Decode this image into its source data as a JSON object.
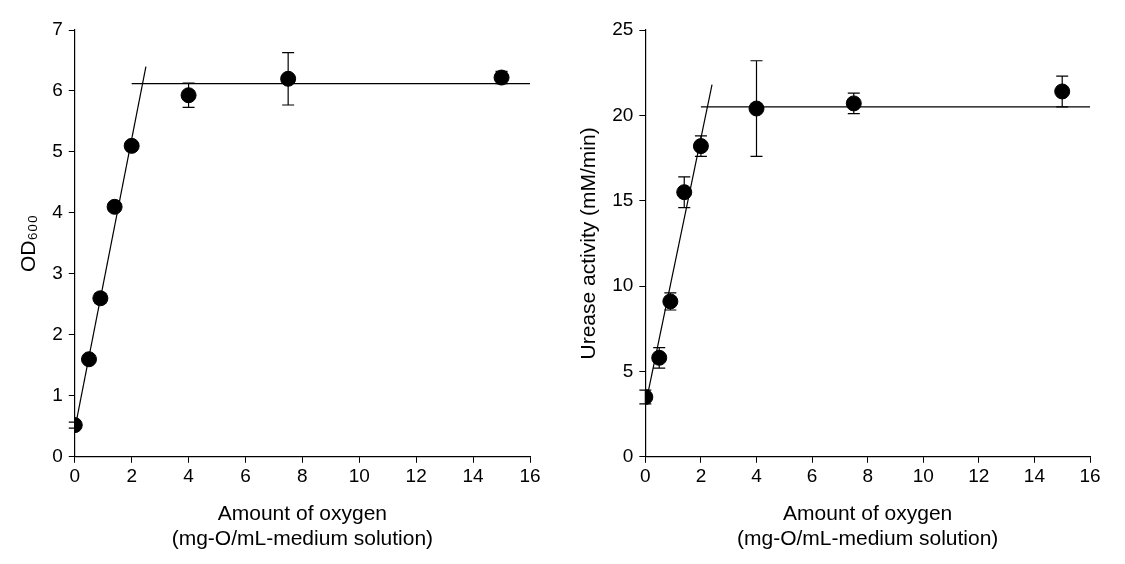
{
  "chart_data": [
    {
      "type": "scatter",
      "x_label": [
        "Amount of oxygen",
        "(mg-O/mL-medium solution)"
      ],
      "y_label": "OD₆₀₀",
      "xlim": [
        0,
        16
      ],
      "xticks": [
        0,
        2,
        4,
        6,
        8,
        10,
        12,
        14,
        16
      ],
      "ylim": [
        0,
        7
      ],
      "yticks": [
        0,
        1,
        2,
        3,
        4,
        5,
        6,
        7
      ],
      "grid": false,
      "series": [
        {
          "type": "scatter",
          "marker": "circle",
          "color": "#000000",
          "x": [
            0,
            0.5,
            0.9,
            1.4,
            2.0,
            4.0,
            7.5,
            15.0
          ],
          "values": [
            0.52,
            1.6,
            2.6,
            4.1,
            5.1,
            5.93,
            6.2,
            6.22
          ],
          "errors": [
            0.05,
            0.05,
            0.08,
            0.05,
            0.05,
            0.2,
            0.43,
            0.1
          ]
        },
        {
          "type": "line",
          "line_style": "solid",
          "color": "#000000",
          "x": [
            0,
            2.5
          ],
          "values": [
            0.45,
            6.4
          ]
        },
        {
          "type": "line",
          "line_style": "solid",
          "color": "#000000",
          "x": [
            2.0,
            16.0
          ],
          "values": [
            6.12,
            6.12
          ]
        }
      ]
    },
    {
      "type": "scatter",
      "x_label": [
        "Amount of oxygen",
        "(mg-O/mL-medium solution)"
      ],
      "y_label": "Urease activity (mM/min)",
      "xlim": [
        0,
        16
      ],
      "xticks": [
        0,
        2,
        4,
        6,
        8,
        10,
        12,
        14,
        16
      ],
      "ylim": [
        0,
        25
      ],
      "yticks": [
        0,
        5,
        10,
        15,
        20,
        25
      ],
      "grid": false,
      "series": [
        {
          "type": "scatter",
          "marker": "circle",
          "color": "#000000",
          "x": [
            0,
            0.5,
            0.9,
            1.4,
            2.0,
            4.0,
            7.5,
            15.0
          ],
          "values": [
            3.5,
            5.8,
            9.1,
            15.5,
            18.2,
            20.4,
            20.7,
            21.4
          ],
          "errors": [
            0.4,
            0.6,
            0.5,
            0.9,
            0.6,
            2.8,
            0.6,
            0.9
          ]
        },
        {
          "type": "line",
          "line_style": "solid",
          "color": "#000000",
          "x": [
            0,
            2.4
          ],
          "values": [
            3.0,
            21.8
          ]
        },
        {
          "type": "line",
          "line_style": "solid",
          "color": "#000000",
          "x": [
            2.0,
            16.0
          ],
          "values": [
            20.5,
            20.5
          ]
        }
      ]
    }
  ]
}
